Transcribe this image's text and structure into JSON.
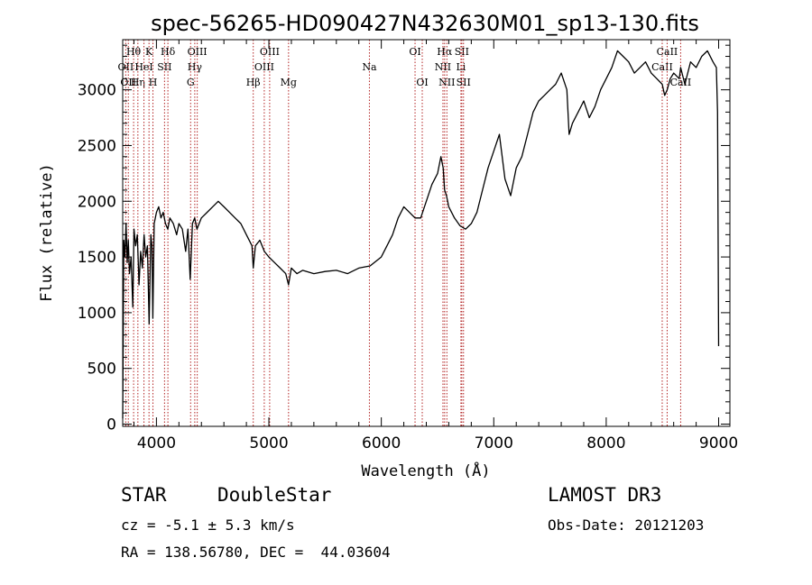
{
  "chart_data": {
    "type": "line",
    "title": "spec-56265-HD090427N432630M01_sp13-130.fits",
    "xlabel": "Wavelength (Å)",
    "ylabel": "Flux (relative)",
    "xlim": [
      3700,
      9100
    ],
    "ylim": [
      -20,
      3450
    ],
    "x_ticks": [
      4000,
      5000,
      6000,
      7000,
      8000,
      9000
    ],
    "y_ticks": [
      0,
      500,
      1000,
      1500,
      2000,
      2500,
      3000
    ],
    "grid": false,
    "series": [
      {
        "color": "#000000",
        "x": [
          3700,
          3710,
          3720,
          3730,
          3740,
          3750,
          3760,
          3775,
          3790,
          3800,
          3815,
          3830,
          3845,
          3860,
          3875,
          3890,
          3905,
          3920,
          3935,
          3950,
          3960,
          3968,
          3980,
          4000,
          4020,
          4040,
          4060,
          4080,
          4101,
          4120,
          4150,
          4180,
          4200,
          4230,
          4260,
          4280,
          4300,
          4320,
          4340,
          4360,
          4400,
          4450,
          4500,
          4550,
          4600,
          4650,
          4700,
          4750,
          4800,
          4850,
          4861,
          4880,
          4920,
          4960,
          5000,
          5050,
          5100,
          5150,
          5175,
          5200,
          5250,
          5300,
          5400,
          5500,
          5600,
          5700,
          5800,
          5900,
          6000,
          6050,
          6100,
          6150,
          6200,
          6250,
          6300,
          6350,
          6400,
          6450,
          6500,
          6530,
          6550,
          6563,
          6580,
          6600,
          6650,
          6700,
          6750,
          6800,
          6850,
          6900,
          6950,
          7000,
          7050,
          7100,
          7150,
          7200,
          7250,
          7300,
          7350,
          7400,
          7450,
          7500,
          7550,
          7600,
          7650,
          7670,
          7700,
          7750,
          7800,
          7850,
          7900,
          7950,
          8000,
          8050,
          8100,
          8150,
          8200,
          8250,
          8300,
          8350,
          8400,
          8450,
          8498,
          8520,
          8542,
          8570,
          8600,
          8650,
          8662,
          8700,
          8750,
          8800,
          8850,
          8900,
          8950,
          8980,
          8990,
          9000
        ],
        "values": [
          50,
          1650,
          1500,
          1800,
          1450,
          1650,
          1350,
          1500,
          1050,
          1750,
          1600,
          1700,
          1250,
          1550,
          1400,
          1700,
          1500,
          1600,
          900,
          1700,
          1600,
          950,
          1800,
          1900,
          1950,
          1850,
          1900,
          1800,
          1750,
          1850,
          1800,
          1700,
          1800,
          1750,
          1550,
          1750,
          1300,
          1800,
          1850,
          1750,
          1850,
          1900,
          1950,
          2000,
          1950,
          1900,
          1850,
          1800,
          1700,
          1600,
          1400,
          1600,
          1650,
          1550,
          1500,
          1450,
          1400,
          1350,
          1250,
          1400,
          1350,
          1380,
          1350,
          1370,
          1380,
          1350,
          1400,
          1420,
          1500,
          1600,
          1700,
          1850,
          1950,
          1900,
          1850,
          1850,
          2000,
          2150,
          2250,
          2400,
          2300,
          2100,
          2050,
          1950,
          1850,
          1780,
          1750,
          1800,
          1900,
          2100,
          2300,
          2450,
          2600,
          2200,
          2050,
          2300,
          2400,
          2600,
          2800,
          2900,
          2950,
          3000,
          3050,
          3150,
          3000,
          2600,
          2700,
          2800,
          2900,
          2750,
          2850,
          3000,
          3100,
          3200,
          3350,
          3300,
          3250,
          3150,
          3200,
          3250,
          3150,
          3100,
          3050,
          2950,
          3000,
          3100,
          3150,
          3100,
          3200,
          3050,
          3250,
          3200,
          3300,
          3350,
          3250,
          3200,
          2800,
          700
        ]
      }
    ],
    "line_markers": [
      {
        "wavelength": 3727,
        "label": "OII",
        "row": 1
      },
      {
        "wavelength": 3750,
        "label": "OII",
        "row": 2
      },
      {
        "wavelength": 3797,
        "label": "Hθ",
        "row": 0
      },
      {
        "wavelength": 3835,
        "label": "Hη",
        "row": 2
      },
      {
        "wavelength": 3889,
        "label": "HeI",
        "row": 1
      },
      {
        "wavelength": 3934,
        "label": "K",
        "row": 0
      },
      {
        "wavelength": 3969,
        "label": "H",
        "row": 2
      },
      {
        "wavelength": 4072,
        "label": "SII",
        "row": 1
      },
      {
        "wavelength": 4102,
        "label": "Hδ",
        "row": 0
      },
      {
        "wavelength": 4304,
        "label": "G",
        "row": 2
      },
      {
        "wavelength": 4341,
        "label": "Hγ",
        "row": 1
      },
      {
        "wavelength": 4363,
        "label": "OIII",
        "row": 0
      },
      {
        "wavelength": 4861,
        "label": "Hβ",
        "row": 2
      },
      {
        "wavelength": 4959,
        "label": "OIII",
        "row": 1
      },
      {
        "wavelength": 5007,
        "label": "OIII",
        "row": 0
      },
      {
        "wavelength": 5175,
        "label": "Mg",
        "row": 2
      },
      {
        "wavelength": 5894,
        "label": "Na",
        "row": 1
      },
      {
        "wavelength": 6300,
        "label": "OI",
        "row": 0
      },
      {
        "wavelength": 6364,
        "label": "OI",
        "row": 2
      },
      {
        "wavelength": 6548,
        "label": "NII",
        "row": 1
      },
      {
        "wavelength": 6563,
        "label": "Hα",
        "row": 0
      },
      {
        "wavelength": 6583,
        "label": "NII",
        "row": 2
      },
      {
        "wavelength": 6708,
        "label": "Li",
        "row": 1
      },
      {
        "wavelength": 6716,
        "label": "SII",
        "row": 0
      },
      {
        "wavelength": 6731,
        "label": "SII",
        "row": 2
      },
      {
        "wavelength": 8498,
        "label": "CaII",
        "row": 1
      },
      {
        "wavelength": 8542,
        "label": "CaII",
        "row": 0
      },
      {
        "wavelength": 8662,
        "label": "CaII",
        "row": 2
      }
    ],
    "marker_color": "#b22222"
  },
  "info": {
    "object_class": "STAR",
    "subclass": "DoubleStar",
    "survey": "LAMOST DR3",
    "cz": "cz = -5.1 ± 5.3 km/s",
    "obs_date": "Obs-Date: 20121203",
    "coords": "RA = 138.56780, DEC =  44.03604"
  }
}
